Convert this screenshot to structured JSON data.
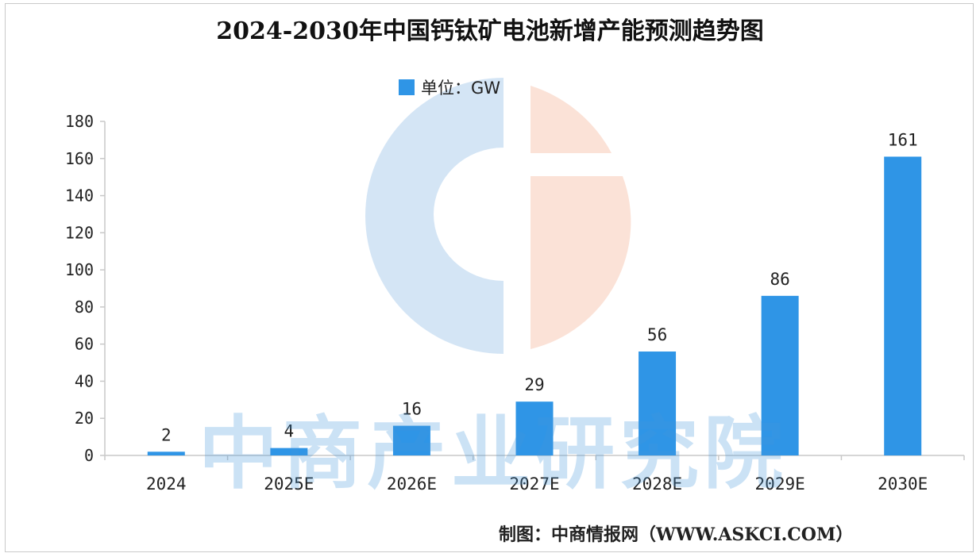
{
  "page": {
    "title": "2024-2030年中国钙钛矿电池新增产能预测趋势图",
    "watermark": "中商产业研究院",
    "source": "制图：中商情报网（WWW.ASKCI.COM）"
  },
  "chart_data": {
    "type": "bar",
    "title": "2024-2030年中国钙钛矿电池新增产能预测趋势图",
    "xlabel": "",
    "ylabel": "",
    "legend": {
      "label": "单位：GW",
      "position": "top-center"
    },
    "categories": [
      "2024",
      "2025E",
      "2026E",
      "2027E",
      "2028E",
      "2029E",
      "2030E"
    ],
    "series": [
      {
        "name": "单位：GW",
        "values": [
          2,
          4,
          16,
          29,
          56,
          86,
          161
        ]
      }
    ],
    "data_labels": [
      "2",
      "4",
      "16",
      "29",
      "56",
      "86",
      "161"
    ],
    "ylim": [
      0,
      180
    ],
    "yticks": [
      0,
      20,
      40,
      60,
      80,
      100,
      120,
      140,
      160,
      180
    ],
    "grid": false,
    "colors": {
      "bar": "#2f95e6",
      "axis": "#c8c8c8"
    }
  }
}
